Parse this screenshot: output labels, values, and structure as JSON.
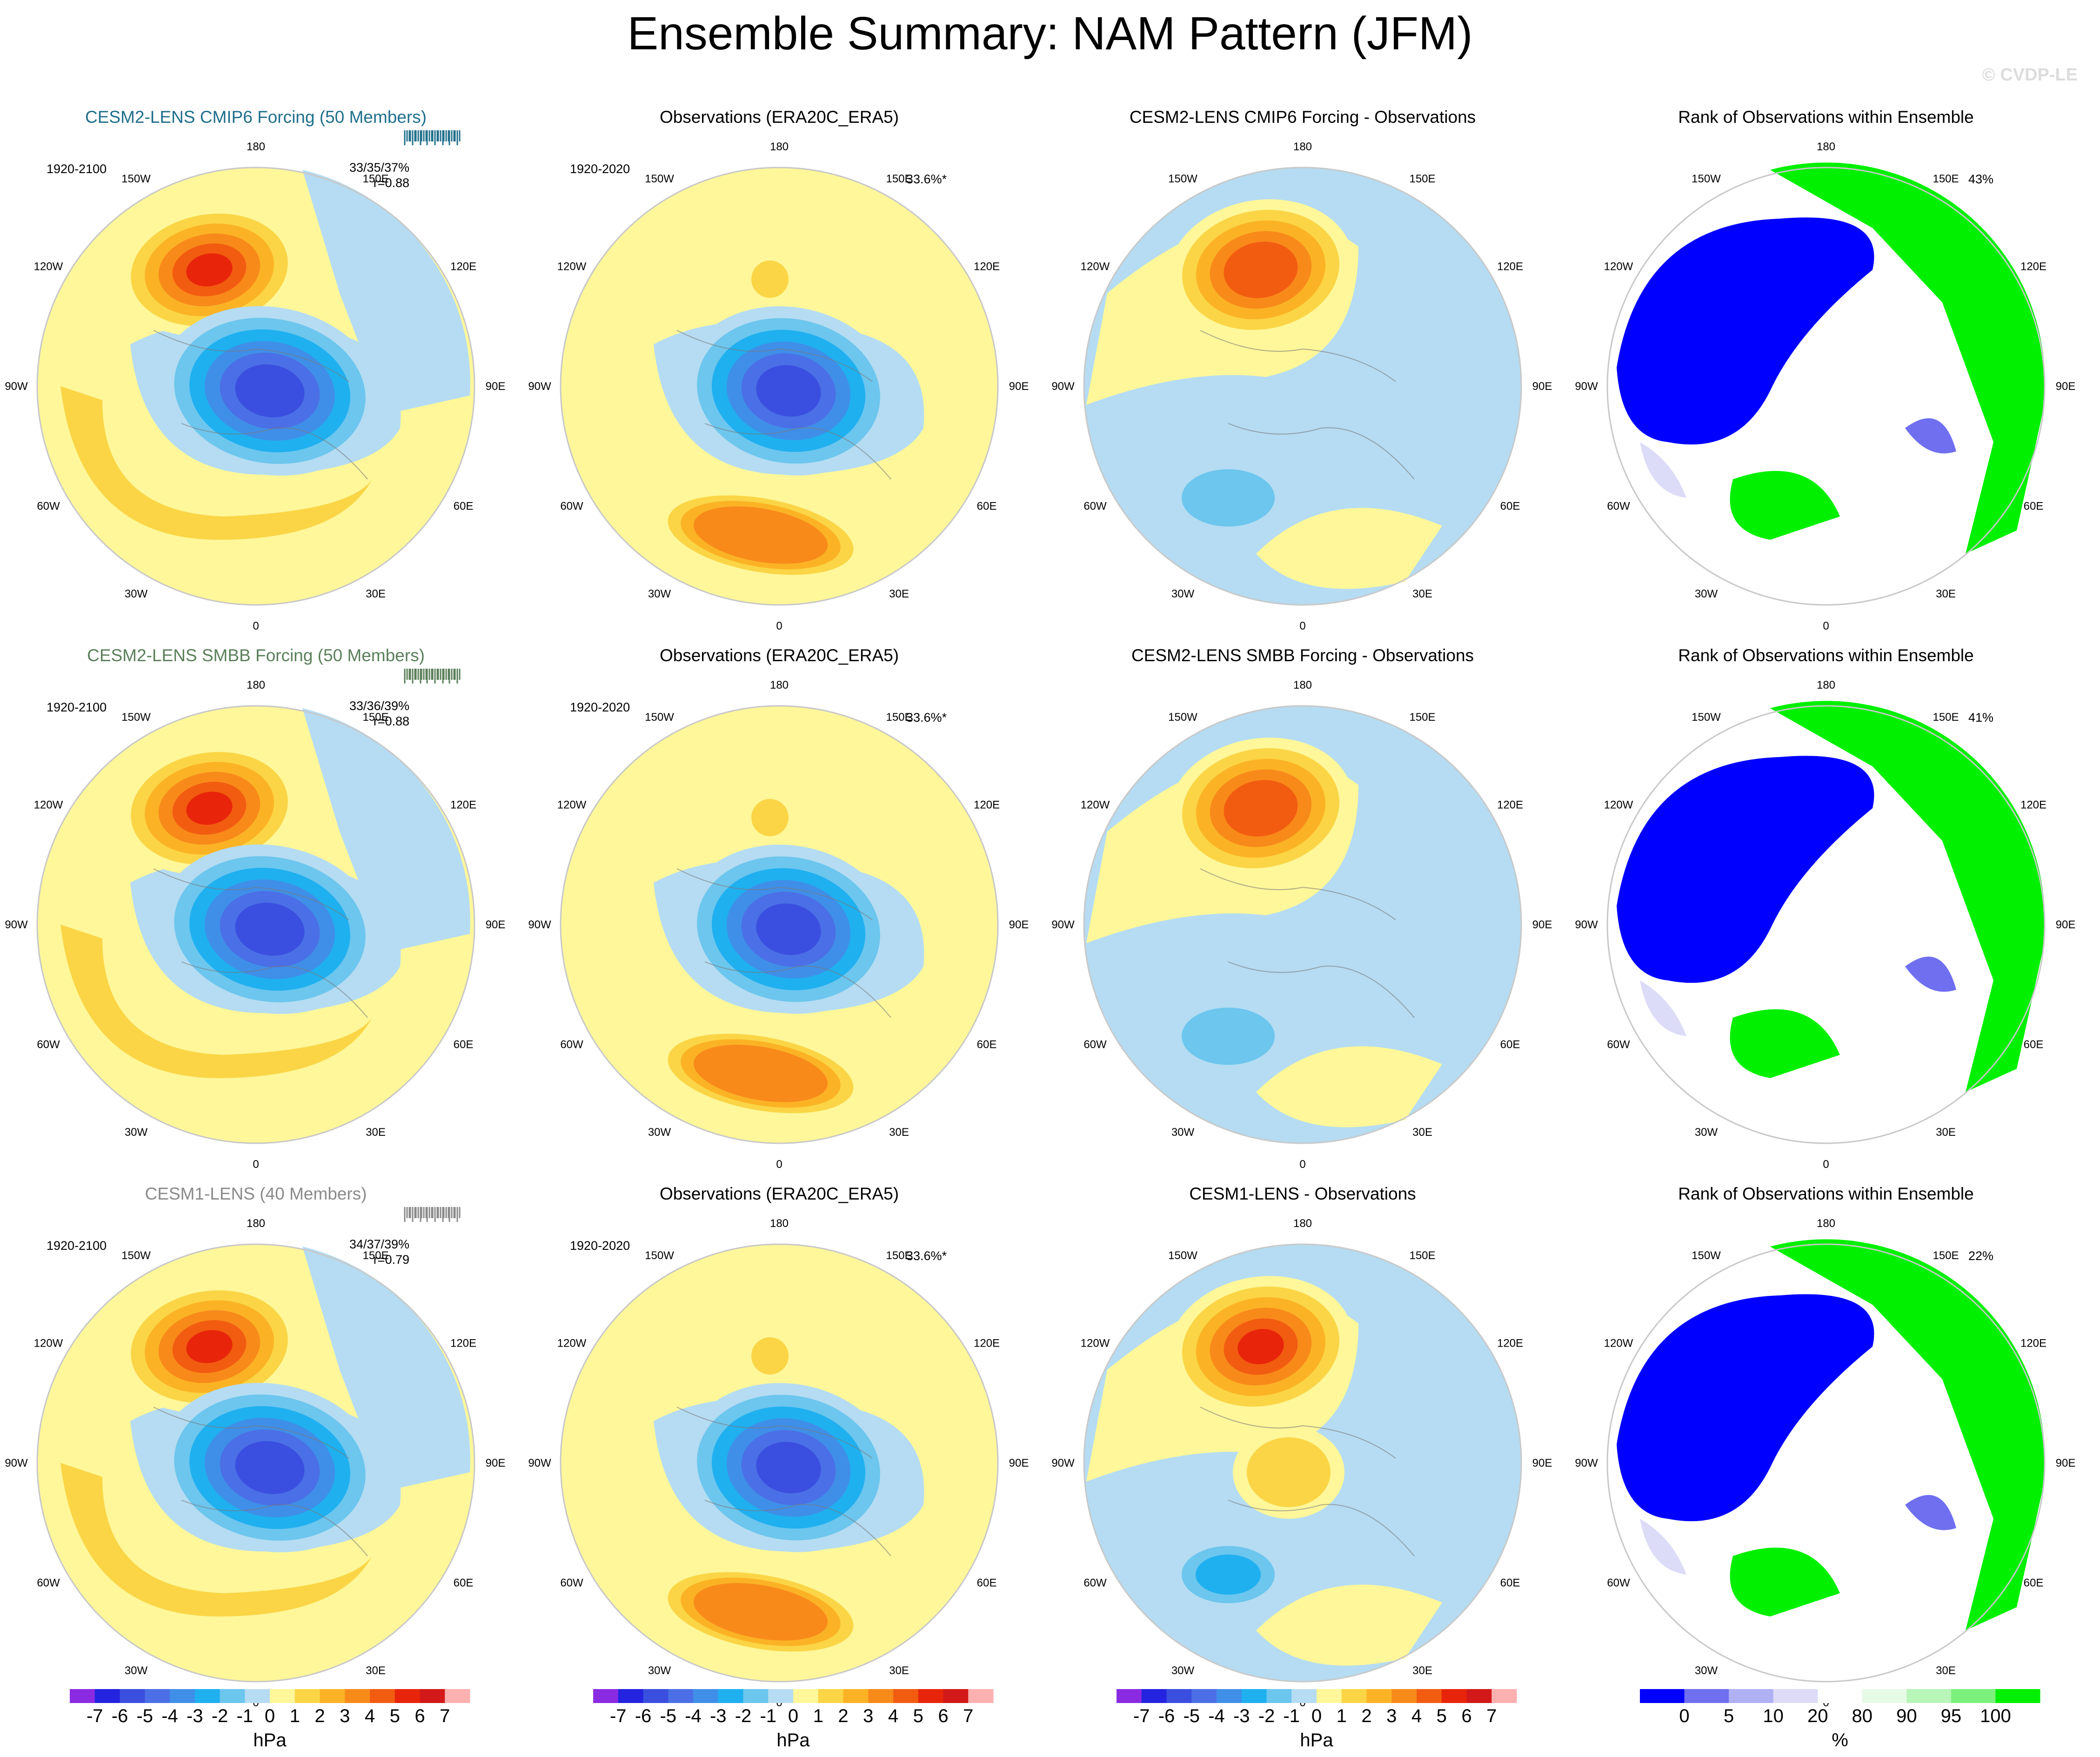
{
  "title": "Ensemble Summary: NAM Pattern (JFM)",
  "watermark": "© CVDP-LE",
  "rows": [
    {
      "model_title": "CESM2-LENS CMIP6 Forcing (50 Members)",
      "model_years": "1920-2100",
      "model_stat": "33/35/37%",
      "model_r": "r=0.88",
      "obs_title": "Observations (ERA20C_ERA5)",
      "obs_years": "1920-2020",
      "obs_pct": "33.6%*",
      "diff_title": "CESM2-LENS CMIP6 Forcing - Observations",
      "rank_title": "Rank of Observations within Ensemble",
      "rank_pct": "43%",
      "strip_color": "#1f6f8b"
    },
    {
      "model_title": "CESM2-LENS SMBB Forcing (50 Members)",
      "model_years": "1920-2100",
      "model_stat": "33/36/39%",
      "model_r": "r=0.88",
      "obs_title": "Observations (ERA20C_ERA5)",
      "obs_years": "1920-2020",
      "obs_pct": "33.6%*",
      "diff_title": "CESM2-LENS SMBB Forcing - Observations",
      "rank_title": "Rank of Observations within Ensemble",
      "rank_pct": "41%",
      "strip_color": "#5a7f5a"
    },
    {
      "model_title": "CESM1-LENS (40 Members)",
      "model_years": "1920-2100",
      "model_stat": "34/37/39%",
      "model_r": "r=0.79",
      "obs_title": "Observations (ERA20C_ERA5)",
      "obs_years": "1920-2020",
      "obs_pct": "33.6%*",
      "diff_title": "CESM1-LENS - Observations",
      "rank_title": "Rank of Observations within Ensemble",
      "rank_pct": "22%",
      "strip_color": "#8a8a8a"
    }
  ],
  "lon_labels": [
    "180",
    "150E",
    "120E",
    "90E",
    "60E",
    "30E",
    "0",
    "30W",
    "60W",
    "90W",
    "120W",
    "150W"
  ],
  "chart_data": {
    "type": "heatmap",
    "projection": "north polar stereographic",
    "units": "hPa",
    "hpa_colorbar": {
      "label": "hPa",
      "ticks": [
        "-7",
        "-6",
        "-5",
        "-4",
        "-3",
        "-2",
        "-1",
        "0",
        "1",
        "2",
        "3",
        "4",
        "5",
        "6",
        "7"
      ],
      "colors": [
        "#8a2be2",
        "#2323e0",
        "#3a4fe0",
        "#4b6fe6",
        "#3f8fe8",
        "#1fb0f0",
        "#6cc6ee",
        "#b5dcf2",
        "#fff79a",
        "#fbd545",
        "#fbb325",
        "#f88a1a",
        "#f25c10",
        "#e8250b",
        "#d21818",
        "#fdb0b0"
      ]
    },
    "rank_colorbar": {
      "label": "%",
      "ticks": [
        "0",
        "5",
        "10",
        "20",
        "80",
        "90",
        "95",
        "100"
      ],
      "colors": [
        "#0000ff",
        "#6f6ff0",
        "#b0b0f5",
        "#dcdcf8",
        "#ffffff",
        "#e6fbe6",
        "#b8f5b8",
        "#7cf07c",
        "#00f000"
      ]
    }
  }
}
